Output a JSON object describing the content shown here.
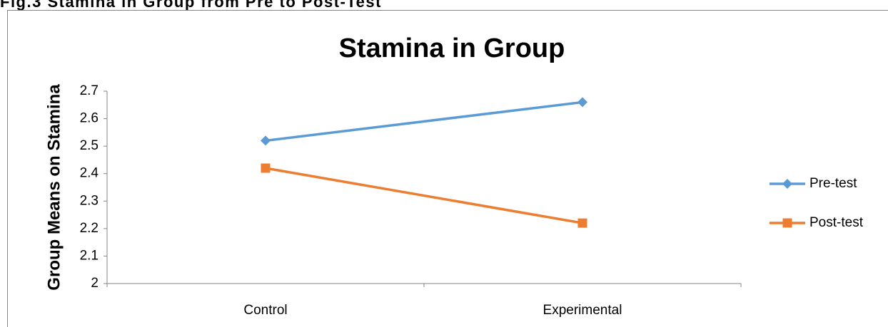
{
  "caption": "Fig.3 Stamina in Group from Pre to Post-Test",
  "chart_data": {
    "type": "line",
    "title": "Stamina in Group",
    "y_label": "Group Means on Stamina",
    "categories": [
      "Control",
      "Experimental"
    ],
    "series": [
      {
        "name": "Pre-test",
        "color": "#5b9bd5",
        "marker": "diamond",
        "values": [
          2.52,
          2.66
        ]
      },
      {
        "name": "Post-test",
        "color": "#ed7d31",
        "marker": "square",
        "values": [
          2.42,
          2.22
        ]
      }
    ],
    "ylim": [
      2,
      2.7
    ],
    "yticks": [
      2,
      2.1,
      2.2,
      2.3,
      2.4,
      2.5,
      2.6,
      2.7
    ],
    "grid": false,
    "legend": "right"
  }
}
